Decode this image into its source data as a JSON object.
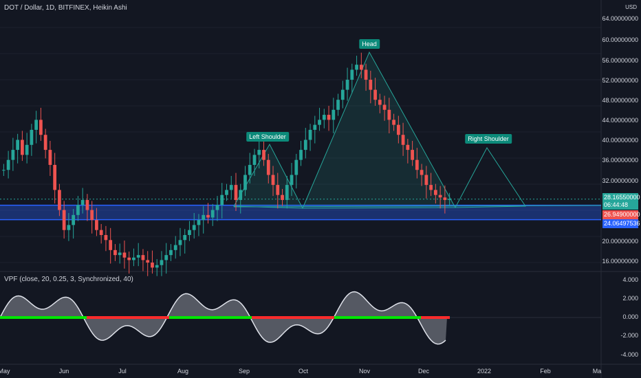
{
  "header": {
    "title": "DOT / Dollar, 1D, BITFINEX, Heikin Ashi",
    "currency": "USD"
  },
  "indicator": {
    "title": "VPF (close, 20, 0.25, 3, Synchronized, 40)"
  },
  "price_axis": [
    "64.00000000",
    "60.00000000",
    "56.00000000",
    "52.00000000",
    "48.00000000",
    "44.00000000",
    "40.00000000",
    "36.00000000",
    "32.00000000",
    "20.00000000",
    "16.00000000"
  ],
  "indicator_axis": [
    "4.000",
    "2.000",
    "0.000",
    "-2.000",
    "-4.000"
  ],
  "time_axis": [
    "May",
    "Jun",
    "Jul",
    "Aug",
    "Sep",
    "Oct",
    "Nov",
    "Dec",
    "2022",
    "Feb",
    "Ma"
  ],
  "price_tags": {
    "last": "28.16550000",
    "countdown": "06:44:48",
    "level_red": "26.94900000",
    "level_blue": "24.06497536"
  },
  "annotations": {
    "left_shoulder": "Left Shoulder",
    "head": "Head",
    "right_shoulder": "Right Shoulder"
  },
  "colors": {
    "background": "#131722",
    "up": "#26a69a",
    "down": "#ef5350",
    "support_band": "#2962ff",
    "pattern_fill": "#26a69a",
    "callout": "#0c8a7a"
  },
  "chart_data": {
    "type": "candlestick",
    "title": "DOT / Dollar, 1D, BITFINEX, Heikin Ashi",
    "xlabel": "",
    "ylabel": "",
    "ylim": [
      14,
      66
    ],
    "support_band": [
      24.06,
      26.95
    ],
    "last_price": 28.1655,
    "closes": [
      34,
      36,
      38,
      40,
      37,
      39,
      42,
      44,
      41,
      38,
      35,
      30,
      26,
      22,
      23,
      25,
      27,
      28,
      26,
      24,
      22,
      21,
      20,
      18,
      17,
      17.5,
      16.5,
      16,
      16.5,
      17,
      16,
      15.5,
      14.5,
      15,
      16,
      17,
      18,
      19,
      20,
      21,
      22,
      23,
      24,
      25,
      24.5,
      26,
      27,
      29,
      30,
      31,
      28,
      30,
      33,
      35,
      37,
      38,
      36,
      33,
      31,
      29,
      28,
      31,
      33,
      36,
      38,
      40,
      42,
      43,
      44,
      45,
      44,
      46,
      48,
      50,
      52,
      54,
      55,
      54,
      52,
      50,
      48,
      47,
      46,
      44,
      43,
      41,
      39,
      38,
      36,
      34,
      33,
      31,
      30,
      29,
      28.5,
      28,
      28.2
    ],
    "indicator": {
      "name": "VPF",
      "ylim": [
        -4.5,
        4.5
      ]
    }
  }
}
